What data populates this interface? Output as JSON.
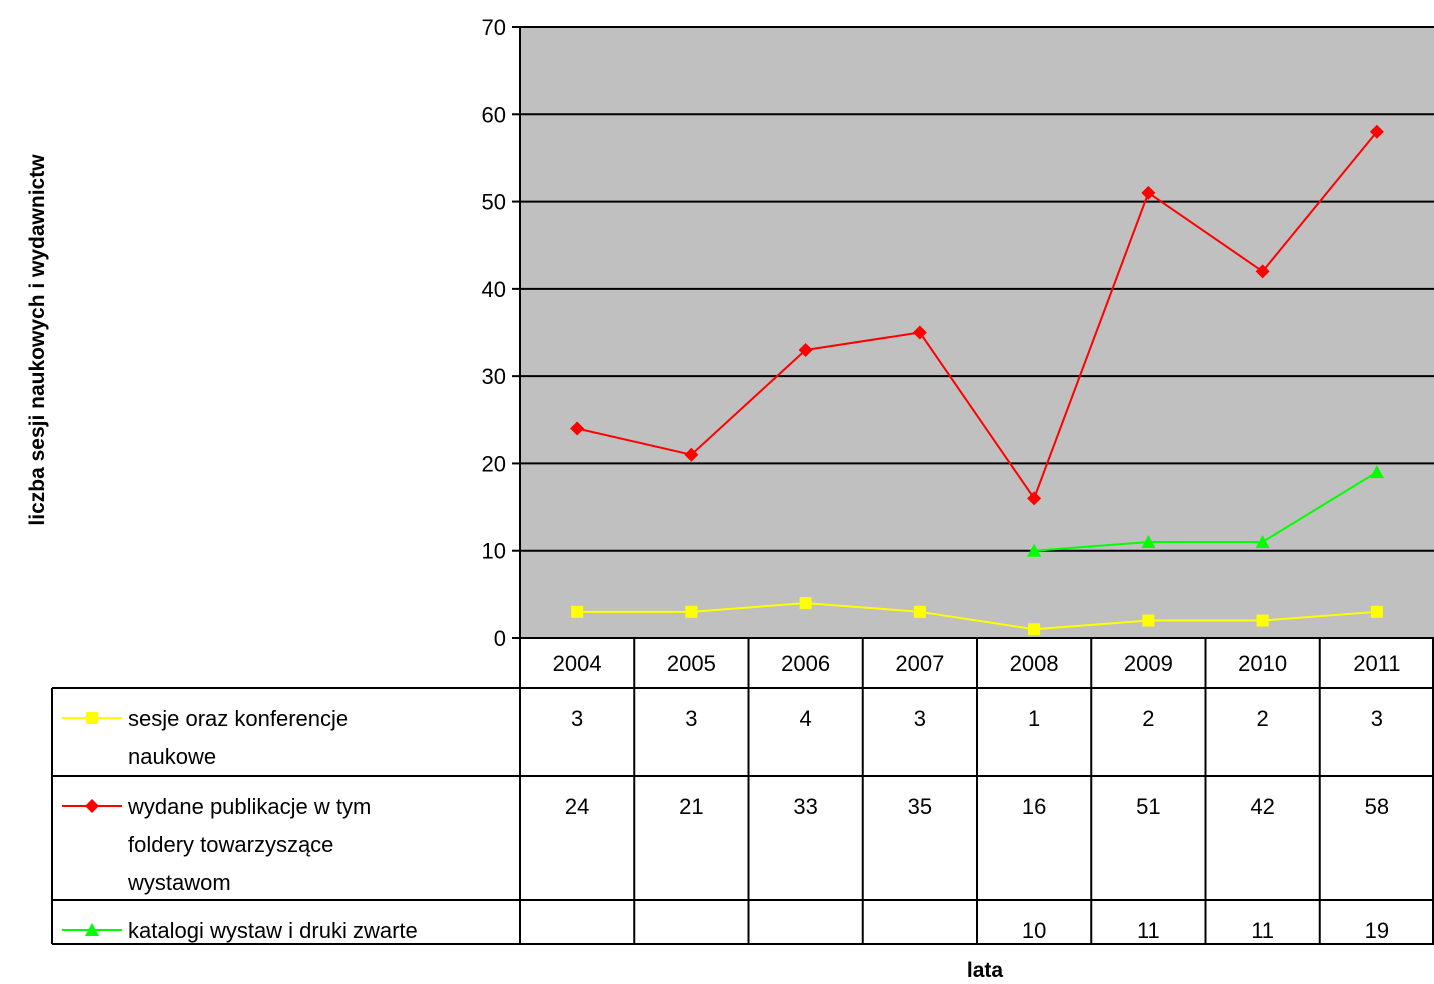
{
  "chart_data": {
    "type": "line",
    "ylabel": "liczba sesji naukowych i wydawnictw",
    "xlabel": "lata",
    "ylim": [
      0,
      70
    ],
    "y_ticks": [
      "0",
      "10",
      "20",
      "30",
      "40",
      "50",
      "60",
      "70"
    ],
    "grid": "horizontal",
    "plot_background": "#C0C0C0",
    "legend_placement": "data-table",
    "categories": [
      "2004",
      "2005",
      "2006",
      "2007",
      "2008",
      "2009",
      "2010",
      "2011"
    ],
    "series": [
      {
        "name": "sesje oraz konferencje naukowe",
        "name_lines": [
          "sesje oraz konferencje",
          "naukowe"
        ],
        "color": "#FFFF00",
        "marker": "square",
        "values": [
          3,
          3,
          4,
          3,
          1,
          2,
          2,
          3
        ],
        "table_values": [
          "3",
          "3",
          "4",
          "3",
          "1",
          "2",
          "2",
          "3"
        ]
      },
      {
        "name": "wydane publikacje w tym foldery towarzyszące wystawom",
        "name_lines": [
          "wydane publikacje w tym",
          "foldery towarzyszące",
          "wystawom"
        ],
        "color": "#FF0000",
        "marker": "diamond",
        "values": [
          24,
          21,
          33,
          35,
          16,
          51,
          42,
          58
        ],
        "table_values": [
          "24",
          "21",
          "33",
          "35",
          "16",
          "51",
          "42",
          "58"
        ]
      },
      {
        "name": "katalogi wystaw i druki zwarte",
        "name_lines": [
          "katalogi wystaw i druki zwarte"
        ],
        "color": "#00FF00",
        "marker": "triangle",
        "values": [
          null,
          null,
          null,
          null,
          10,
          11,
          11,
          19
        ],
        "table_values": [
          "",
          "",
          "",
          "",
          "10",
          "11",
          "11",
          "19"
        ]
      }
    ]
  }
}
